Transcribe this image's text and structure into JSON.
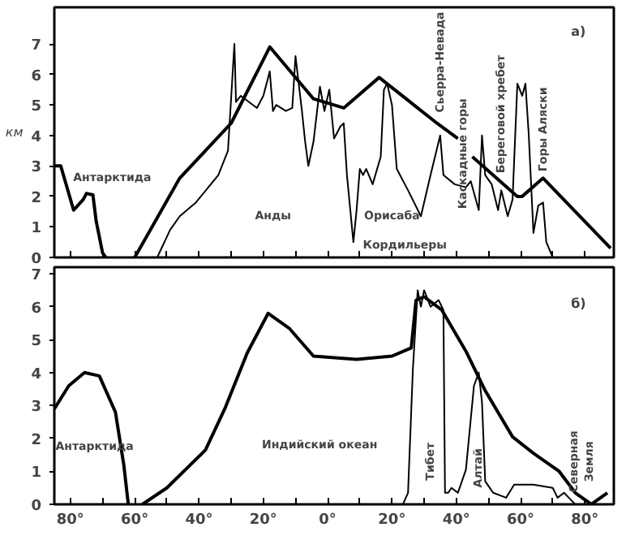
{
  "chart_data": [
    {
      "type": "line",
      "ylabel": "км",
      "xlim": [
        -85,
        89
      ],
      "ylim": [
        0,
        8.2
      ],
      "yticks": [
        0,
        1,
        2,
        3,
        4,
        5,
        6,
        7
      ],
      "tick_labels": "y",
      "grid": false,
      "xticks": [
        -80,
        -70,
        -60,
        -50,
        -40,
        -30,
        -20,
        -10,
        0,
        10,
        20,
        30,
        40,
        50,
        60,
        70,
        80
      ],
      "series": [
        {
          "color": "#000000",
          "x": [
            -85,
            -83,
            -79,
            -76,
            -75,
            -73,
            -72,
            -70,
            -69,
            -68,
            -60,
            -46,
            -30,
            -18,
            -4.4,
            5,
            16,
            34,
            40.5,
            42,
            45,
            59,
            60.5,
            67,
            88
          ],
          "values": [
            3.0,
            3.0,
            1.55,
            1.9,
            2.1,
            2.05,
            1.2,
            0.15,
            0,
            null,
            0,
            2.6,
            4.4,
            6.9,
            5.2,
            4.9,
            5.9,
            4.4,
            3.9,
            null,
            3.3,
            2.0,
            2.0,
            2.6,
            0.3
          ]
        },
        {
          "color": "#000000",
          "x": [
            -53,
            -49,
            -46,
            -41,
            -34,
            -31,
            -29,
            -28.5,
            -27,
            -22,
            -20,
            -18,
            -17,
            -16,
            -13,
            -11,
            -10,
            -8,
            -7,
            -6,
            -4.4,
            -2.4,
            -1,
            0.5,
            2,
            4,
            5,
            6,
            8,
            9,
            10,
            11,
            12,
            14,
            16.5,
            17.5,
            18.5,
            20,
            21.5,
            25,
            29,
            32,
            35,
            36,
            39.5,
            43,
            44.5,
            47,
            48,
            49,
            51,
            53,
            54,
            56,
            57.5,
            59,
            60.5,
            61.5,
            62.5,
            64,
            65.5,
            67,
            68,
            70
          ],
          "values": [
            0,
            0.9,
            1.35,
            1.8,
            2.7,
            3.5,
            7.0,
            5.1,
            5.3,
            4.9,
            5.3,
            6.1,
            4.8,
            5.0,
            4.8,
            4.9,
            6.6,
            4.8,
            3.8,
            3.0,
            3.8,
            5.6,
            4.8,
            5.5,
            3.9,
            4.3,
            4.4,
            2.7,
            0.5,
            1.55,
            2.9,
            2.7,
            2.9,
            2.4,
            3.3,
            5.5,
            5.7,
            5.0,
            2.9,
            2.2,
            1.35,
            2.7,
            4.0,
            2.7,
            2.4,
            2.3,
            2.5,
            1.55,
            4.0,
            2.7,
            2.4,
            1.55,
            2.2,
            1.35,
            1.9,
            5.7,
            5.3,
            5.7,
            4.1,
            0.8,
            1.7,
            1.8,
            0.5,
            0
          ]
        }
      ],
      "annotations": [
        "а)",
        "Антарктида",
        "Анды",
        "Орисаба",
        "Кордильеры",
        "Сьерра-Невада",
        "Каскадные горы",
        "Береговой хребет",
        "Горы Аляски"
      ]
    },
    {
      "type": "line",
      "xlim": [
        -85,
        89
      ],
      "ylim": [
        0,
        7.2
      ],
      "yticks": [
        0,
        1,
        2,
        3,
        4,
        5,
        6,
        7
      ],
      "grid": false,
      "xticks": [
        {
          "value": -80,
          "label": "80°"
        },
        {
          "value": -70,
          "label": null
        },
        {
          "value": -60,
          "label": "60°"
        },
        {
          "value": -50,
          "label": null
        },
        {
          "value": -40,
          "label": "40°"
        },
        {
          "value": -30,
          "label": null
        },
        {
          "value": -20,
          "label": "20°"
        },
        {
          "value": -10,
          "label": null
        },
        {
          "value": 0,
          "label": "0°"
        },
        {
          "value": 10,
          "label": null
        },
        {
          "value": 20,
          "label": "20°"
        },
        {
          "value": 30,
          "label": null
        },
        {
          "value": 40,
          "label": "40°"
        },
        {
          "value": 50,
          "label": null
        },
        {
          "value": 60,
          "label": "60°"
        },
        {
          "value": 70,
          "label": null
        },
        {
          "value": 80,
          "label": "80°"
        }
      ],
      "series": [
        {
          "color": "#000000",
          "x": [
            -85,
            -80.5,
            -75.6,
            -71,
            -66,
            -63.4,
            -62,
            -60,
            -57.6,
            -50,
            -38,
            -32,
            -25,
            -18.5,
            -12,
            -4.4,
            9,
            20,
            26,
            27.5,
            30,
            35.5,
            43,
            49,
            57.5,
            64,
            72,
            77,
            82,
            87
          ],
          "values": [
            2.9,
            3.6,
            4.0,
            3.9,
            2.8,
            1.2,
            0,
            null,
            0,
            0.5,
            1.65,
            2.9,
            4.6,
            5.8,
            5.35,
            4.5,
            4.4,
            4.5,
            4.75,
            6.2,
            6.3,
            5.9,
            4.65,
            3.45,
            2.05,
            1.55,
            1.0,
            0.35,
            0,
            0.35
          ]
        },
        {
          "color": "#000000",
          "x": [
            23.4,
            25,
            26.5,
            28,
            29,
            30,
            32,
            34.5,
            36,
            36.5,
            37.5,
            38.5,
            40.5,
            43,
            45.5,
            47,
            48,
            49,
            51.5,
            55.5,
            58,
            64,
            70,
            71.5,
            73.5,
            75,
            77
          ],
          "values": [
            0,
            0.35,
            4.1,
            6.5,
            6.0,
            6.5,
            6.0,
            6.2,
            5.9,
            0.35,
            0.35,
            0.5,
            0.35,
            1.05,
            3.6,
            4.0,
            3.1,
            0.7,
            0.35,
            0.2,
            0.6,
            0.6,
            0.5,
            0.2,
            0.35,
            0.2,
            0
          ]
        }
      ],
      "annotations": [
        "б)",
        "Антарктида",
        "Индийский океан",
        "Тибет",
        "Алтай",
        "Северная\nЗемля"
      ]
    }
  ]
}
